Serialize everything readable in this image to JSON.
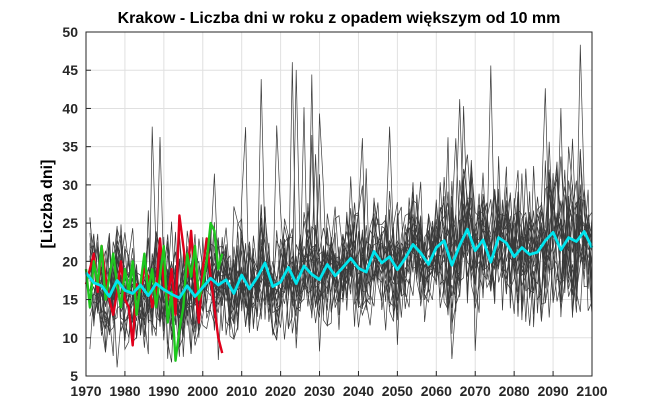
{
  "chart_data": {
    "type": "line",
    "title": "Krakow - Liczba dni w roku z opadem większym od 10 mm",
    "xlabel": "",
    "ylabel": "[Liczba dni]",
    "xlim": [
      1970,
      2100
    ],
    "ylim": [
      5,
      50
    ],
    "xticks": [
      "1970",
      "1980",
      "1990",
      "2000",
      "2010",
      "2020",
      "2030",
      "2040",
      "2050",
      "2060",
      "2070",
      "2080",
      "2090",
      "2100"
    ],
    "yticks": [
      "5",
      "10",
      "15",
      "20",
      "25",
      "30",
      "35",
      "40",
      "45",
      "50"
    ],
    "grid": true,
    "legend": "none",
    "colors": {
      "ensemble": "#3a3a3a",
      "observed_red": "#e0001b",
      "observed_green": "#1ec81e",
      "ensemble_mean": "#00e5ee",
      "axis": "#262626",
      "grid": "#e0e0e0"
    },
    "ensemble_members": 20,
    "series": [
      {
        "x": [
          1970,
          1971,
          1972,
          1973,
          1974,
          1975,
          1976,
          1977,
          1978,
          1979,
          1980,
          1981,
          1982,
          1983,
          1984,
          1985,
          1986,
          1987,
          1988,
          1989,
          1990,
          1991,
          1992,
          1993,
          1994,
          1995,
          1996,
          1997,
          1998,
          1999,
          2000,
          2001,
          2002,
          2003,
          2004,
          2005
        ],
        "values": [
          17,
          19,
          21,
          16,
          22,
          18,
          15,
          13,
          16,
          20,
          15,
          14,
          9,
          17,
          16,
          19,
          18,
          14,
          16,
          23,
          17,
          15,
          19,
          13,
          26,
          22,
          18,
          24,
          17,
          12,
          19,
          23,
          18,
          14,
          10,
          8
        ]
      },
      {
        "x": [
          1970,
          1971,
          1972,
          1973,
          1974,
          1975,
          1976,
          1977,
          1978,
          1979,
          1980,
          1981,
          1982,
          1983,
          1984,
          1985,
          1986,
          1987,
          1988,
          1989,
          1990,
          1991,
          1992,
          1993,
          1994,
          1995,
          1996,
          1997,
          1998,
          1999,
          2000,
          2001,
          2002,
          2003,
          2004,
          2005
        ],
        "values": [
          19,
          14,
          20,
          17,
          22,
          15,
          18,
          21,
          17,
          14,
          19,
          16,
          20,
          13,
          17,
          21,
          16,
          19,
          14,
          18,
          22,
          12,
          16,
          7,
          11,
          14,
          21,
          18,
          22,
          15,
          17,
          20,
          25,
          24,
          19,
          21
        ]
      },
      {
        "x": [
          1970,
          1972,
          1974,
          1976,
          1978,
          1980,
          1982,
          1984,
          1986,
          1988,
          1990,
          1992,
          1994,
          1996,
          1998,
          2000,
          2002,
          2004,
          2006,
          2008,
          2010,
          2012,
          2014,
          2016,
          2018,
          2020,
          2022,
          2024,
          2026,
          2028,
          2030,
          2032,
          2034,
          2036,
          2038,
          2040,
          2042,
          2044,
          2046,
          2048,
          2050,
          2052,
          2054,
          2056,
          2058,
          2060,
          2062,
          2064,
          2066,
          2068,
          2070,
          2072,
          2074,
          2076,
          2078,
          2080,
          2082,
          2084,
          2086,
          2088,
          2090,
          2092,
          2094,
          2096,
          2098,
          2100
        ],
        "values": [
          18.5,
          17.2,
          16.8,
          15.4,
          17.5,
          16.2,
          15.8,
          16.9,
          15.5,
          17.1,
          16.3,
          15.7,
          15.2,
          16.8,
          15.4,
          16.6,
          17.8,
          16.9,
          17.6,
          15.8,
          18.2,
          16.4,
          17.9,
          19.8,
          16.7,
          17.3,
          19.2,
          17.1,
          19.4,
          18.3,
          17.6,
          19.6,
          18.1,
          19.2,
          20.4,
          19.1,
          18.6,
          21.3,
          19.8,
          20.6,
          18.9,
          20.4,
          22.2,
          21.1,
          19.6,
          21.8,
          22.7,
          19.5,
          22.1,
          24.2,
          21.4,
          22.8,
          19.9,
          23.1,
          22.4,
          20.6,
          21.8,
          20.9,
          21.2,
          22.7,
          23.8,
          21.5,
          23.1,
          22.6,
          23.9,
          21.8
        ]
      }
    ]
  }
}
